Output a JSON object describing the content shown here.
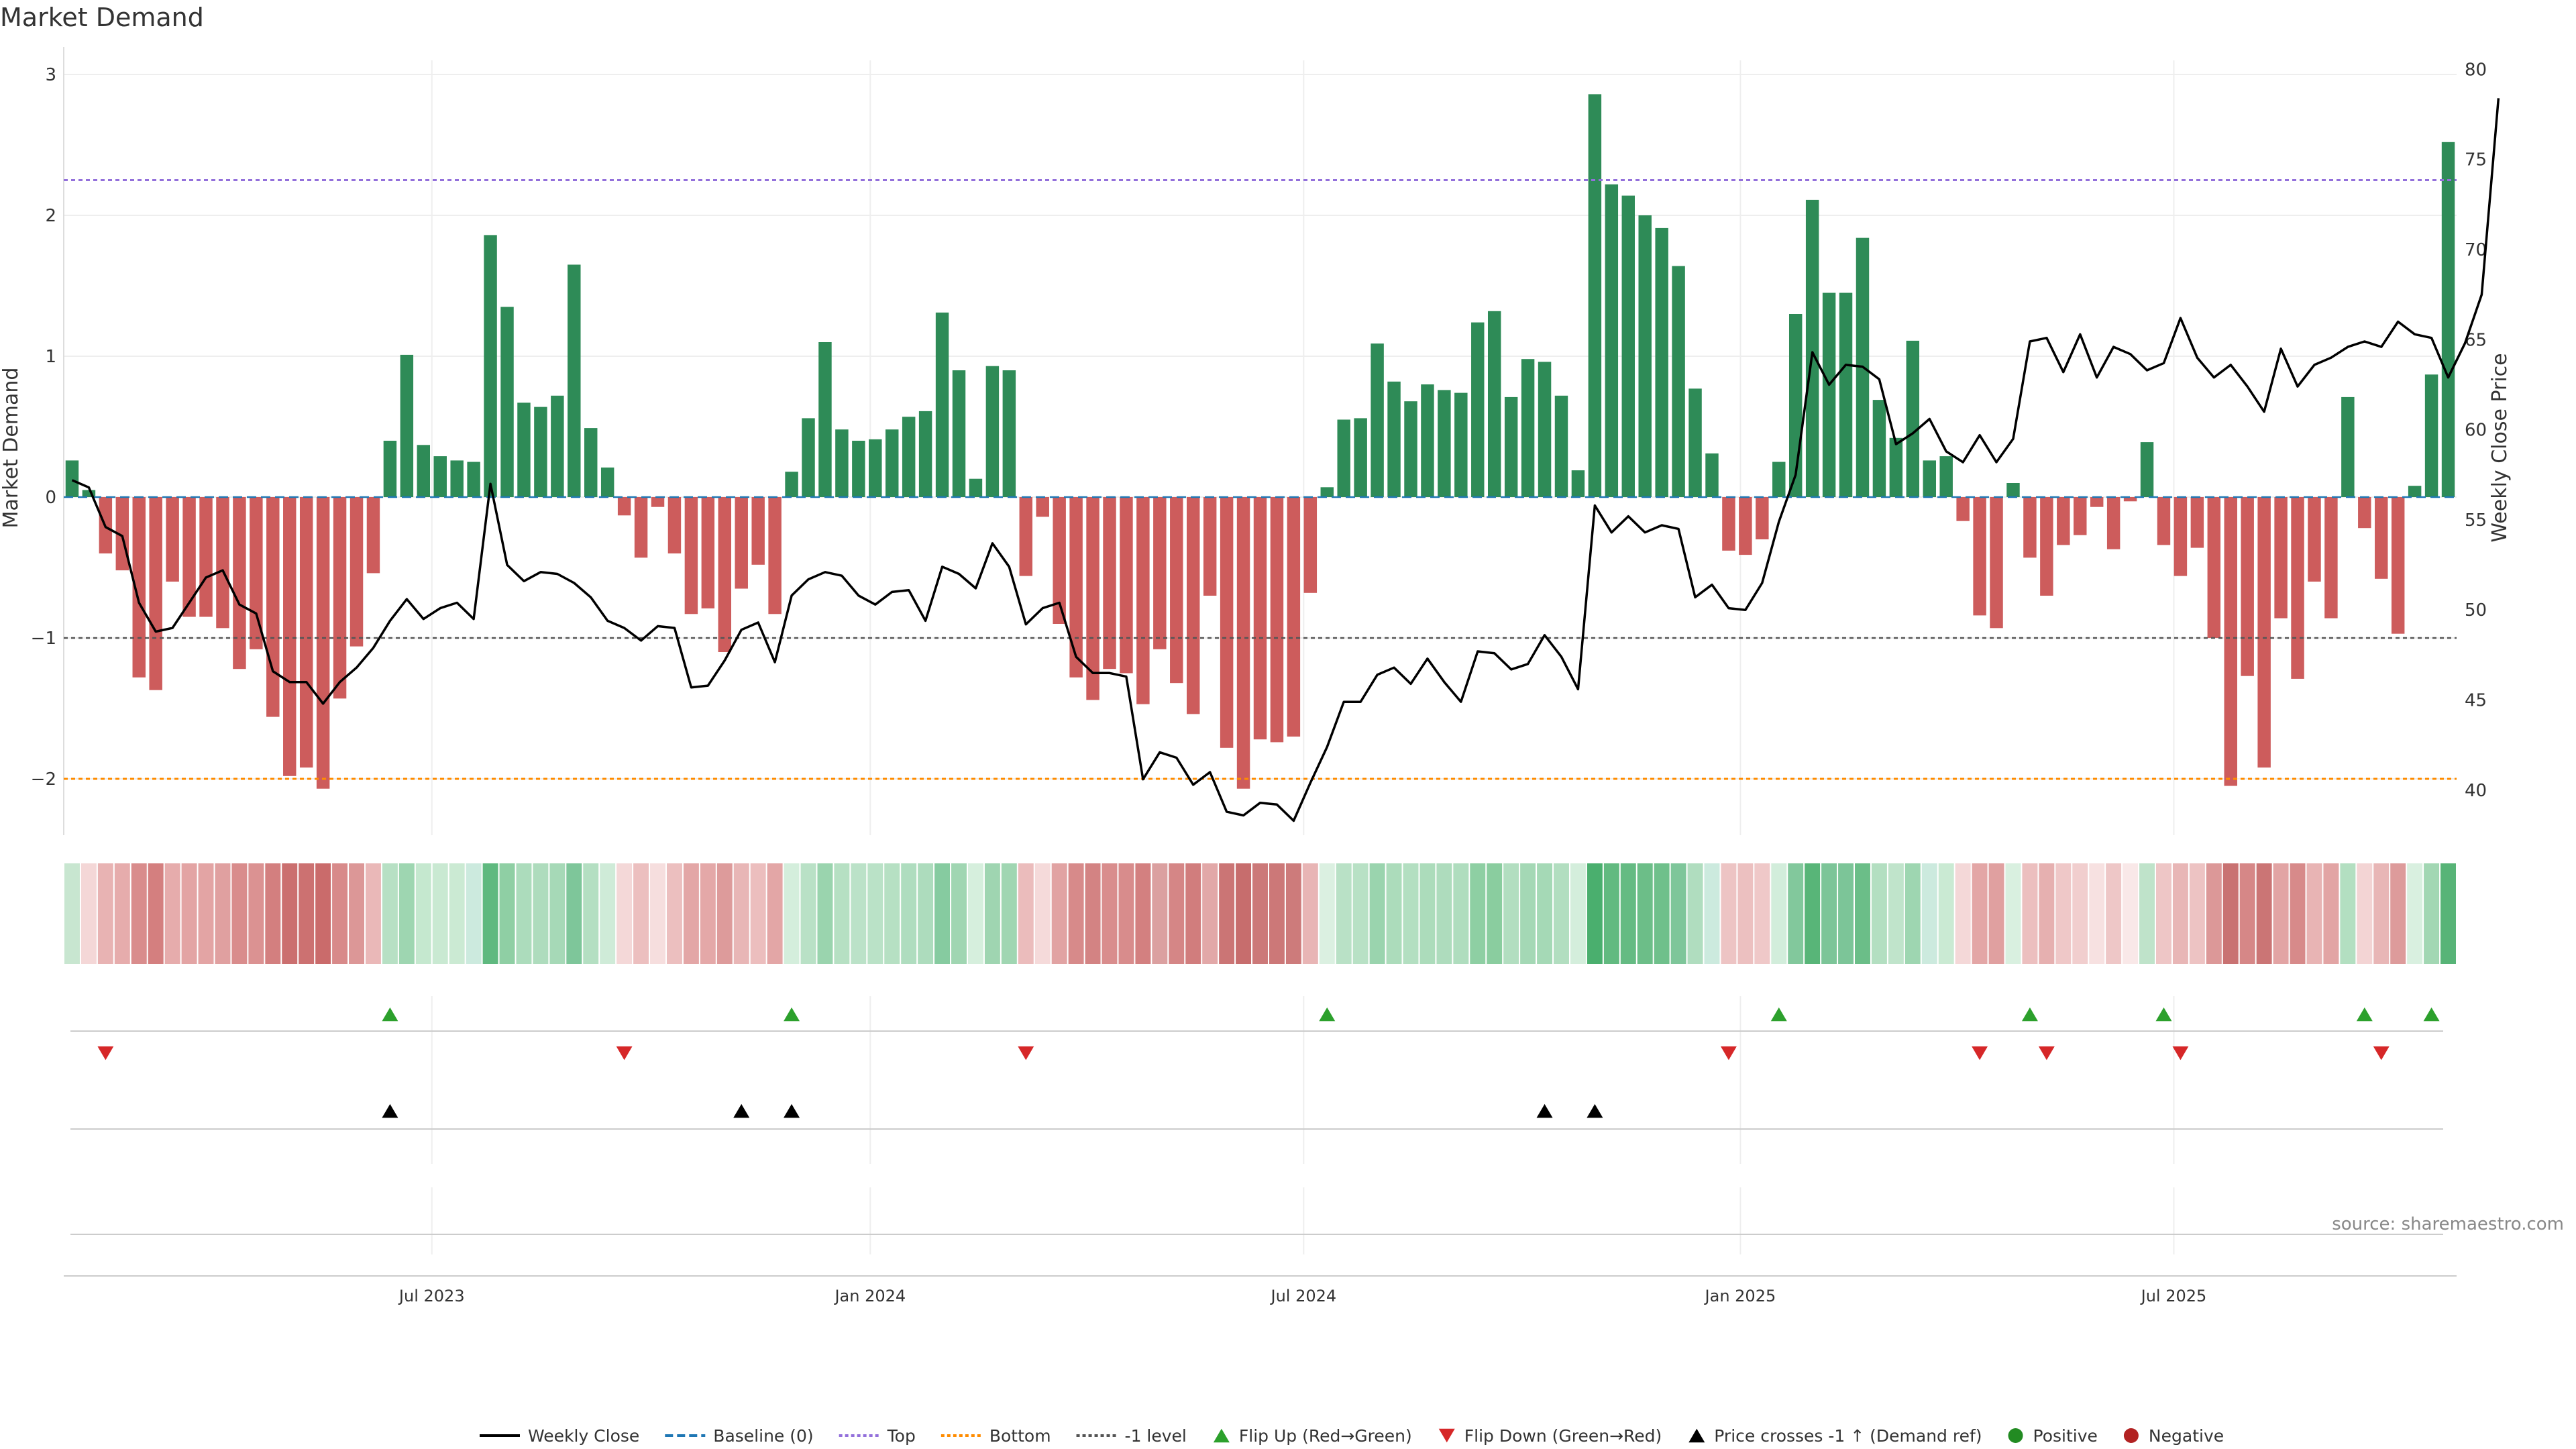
{
  "title": "Market Demand",
  "source": "source: sharemaestro.com",
  "colors": {
    "positive": "#2e8b57",
    "negative": "#cd5c5c",
    "price_line": "#000000",
    "top_line": "#9370db",
    "bottom_line": "#ff8c00",
    "minus1_line": "#555555",
    "baseline": "#1f77b4",
    "flip_up": "#2ca02c",
    "flip_down": "#d62728",
    "cross": "#000000",
    "grid": "#eeeeee"
  },
  "chart_data": {
    "type": "bar",
    "title": "Market Demand",
    "ylabel": "Market Demand",
    "y2label": "Weekly Close Price",
    "ylim": [
      -2.4,
      3.1
    ],
    "y2lim": [
      37.5,
      80.5
    ],
    "yticks": [
      3,
      2,
      1,
      0,
      -1,
      -2
    ],
    "ytick_labels": [
      "3",
      "2",
      "1",
      "0",
      "−1",
      "−2"
    ],
    "y2ticks": [
      80,
      75,
      70,
      65,
      60,
      55,
      50,
      45,
      40
    ],
    "x_months": [
      {
        "label": "Jul 2023",
        "week": 21.5
      },
      {
        "label": "Jan 2024",
        "week": 47.7
      },
      {
        "label": "Jul 2024",
        "week": 73.6
      },
      {
        "label": "Jan 2025",
        "week": 99.7
      },
      {
        "label": "Jul 2025",
        "week": 125.6
      }
    ],
    "levels": {
      "top": 2.25,
      "bottom": -2.0,
      "minus1": -1.0,
      "baseline": 0
    },
    "demand": [
      0.26,
      0.05,
      -0.4,
      -0.52,
      -1.28,
      -1.37,
      -0.6,
      -0.85,
      -0.85,
      -0.93,
      -1.22,
      -1.08,
      -1.56,
      -1.98,
      -1.92,
      -2.07,
      -1.43,
      -1.06,
      -0.54,
      0.4,
      1.01,
      0.37,
      0.29,
      0.26,
      0.25,
      1.86,
      1.35,
      0.67,
      0.64,
      0.72,
      1.65,
      0.49,
      0.21,
      -0.13,
      -0.43,
      -0.07,
      -0.4,
      -0.83,
      -0.79,
      -1.1,
      -0.65,
      -0.48,
      -0.83,
      0.18,
      0.56,
      1.1,
      0.48,
      0.4,
      0.41,
      0.48,
      0.57,
      0.61,
      1.31,
      0.9,
      0.13,
      0.93,
      0.9,
      -0.56,
      -0.14,
      -0.9,
      -1.28,
      -1.44,
      -1.22,
      -1.25,
      -1.47,
      -1.08,
      -1.32,
      -1.54,
      -0.7,
      -1.78,
      -2.07,
      -1.72,
      -1.74,
      -1.7,
      -0.68,
      0.07,
      0.55,
      0.56,
      1.09,
      0.82,
      0.68,
      0.8,
      0.76,
      0.74,
      1.24,
      1.32,
      0.71,
      0.98,
      0.96,
      0.72,
      0.19,
      2.86,
      2.22,
      2.14,
      2.0,
      1.91,
      1.64,
      0.77,
      0.31,
      -0.38,
      -0.41,
      -0.3,
      0.25,
      1.3,
      2.11,
      1.45,
      1.45,
      1.84,
      0.69,
      0.42,
      1.11,
      0.26,
      0.29,
      -0.17,
      -0.84,
      -0.93,
      0.1,
      -0.43,
      -0.7,
      -0.34,
      -0.27,
      -0.07,
      -0.37,
      -0.03,
      0.39,
      -0.34,
      -0.56,
      -0.36,
      -1.0,
      -2.05,
      -1.27,
      -1.92,
      -0.86,
      -1.29,
      -0.6,
      -0.86,
      0.71,
      -0.22,
      -0.58,
      -0.97,
      0.08,
      0.87,
      2.52
    ],
    "price": [
      57.2,
      56.8,
      54.6,
      54.1,
      50.4,
      48.8,
      49.0,
      50.4,
      51.8,
      52.2,
      50.3,
      49.8,
      46.6,
      46.0,
      46.0,
      44.8,
      46.0,
      46.8,
      47.9,
      49.4,
      50.6,
      49.5,
      50.1,
      50.4,
      49.5,
      57.0,
      52.5,
      51.6,
      52.1,
      52.0,
      51.5,
      50.7,
      49.4,
      49.0,
      48.3,
      49.1,
      49.0,
      45.7,
      45.8,
      47.2,
      48.9,
      49.3,
      47.1,
      50.8,
      51.7,
      52.1,
      51.9,
      50.8,
      50.3,
      51.0,
      51.1,
      49.4,
      52.4,
      52.0,
      51.2,
      53.7,
      52.4,
      49.2,
      50.1,
      50.4,
      47.4,
      46.5,
      46.5,
      46.3,
      40.6,
      42.1,
      41.8,
      40.3,
      41.0,
      38.8,
      38.6,
      39.3,
      39.2,
      38.3,
      40.4,
      42.4,
      44.9,
      44.9,
      46.4,
      46.8,
      45.9,
      47.3,
      46.0,
      44.9,
      47.7,
      47.6,
      46.7,
      47.0,
      48.6,
      47.4,
      45.6,
      55.8,
      54.3,
      55.2,
      54.3,
      54.7,
      54.5,
      50.7,
      51.4,
      50.1,
      50.0,
      51.5,
      54.9,
      57.5,
      64.3,
      62.5,
      63.6,
      63.5,
      62.8,
      59.2,
      59.8,
      60.6,
      58.8,
      58.2,
      59.7,
      58.2,
      59.5,
      64.9,
      65.1,
      63.2,
      65.3,
      62.9,
      64.6,
      64.2,
      63.3,
      63.7,
      66.2,
      64.0,
      62.9,
      63.6,
      62.4,
      61.0,
      64.5,
      62.4,
      63.6,
      64.0,
      64.6,
      64.9,
      64.6,
      66.0,
      65.3,
      65.1,
      62.9,
      64.8,
      67.5,
      78.4
    ],
    "heat_colors": [
      "#c8e6d0",
      "#f4d7d7",
      "#e8b3b3",
      "#e6acac",
      "#d98c8c",
      "#d47f7f",
      "#e6acac",
      "#e3a4a4",
      "#e3a4a4",
      "#e0a0a0",
      "#d98c8c",
      "#db9292",
      "#d37f7f",
      "#cb6f6f",
      "#cc7171",
      "#ca6b6b",
      "#d88a8a",
      "#dc9797",
      "#eab8b8",
      "#b7e0c4",
      "#9ed6b1",
      "#c5e8cf",
      "#c9e9d2",
      "#cbead3",
      "#cceade",
      "#5fb97f",
      "#8fcfa4",
      "#acdcbc",
      "#aedcbd",
      "#a6d9b7",
      "#7ec69a",
      "#b4dfc2",
      "#cfebd8",
      "#f4d8d8",
      "#ecbfbf",
      "#f6dede",
      "#ecbfbf",
      "#e3a6a6",
      "#e4a8a8",
      "#dd9b9b",
      "#e8b6b6",
      "#ecbebe",
      "#e3a6a6",
      "#d4eedc",
      "#b9e1c6",
      "#9ad4ae",
      "#b6e0c3",
      "#bbe2c8",
      "#bae2c7",
      "#b6e0c3",
      "#afddbf",
      "#addcbd",
      "#86cba0",
      "#a0d6b2",
      "#d6efdd",
      "#9fd5b1",
      "#a0d6b2",
      "#ebbcbc",
      "#f5dada",
      "#e1a3a3",
      "#d78a8a",
      "#d38383",
      "#d98d8d",
      "#d88c8c",
      "#d38080",
      "#dba0a0",
      "#d58686",
      "#d17d7d",
      "#e2a8a8",
      "#cb7575",
      "#c76d6d",
      "#cc7979",
      "#cc7878",
      "#cd7b7b",
      "#e8b5b5",
      "#dbf0e1",
      "#b9e1c6",
      "#b8e1c5",
      "#9ad4ae",
      "#acdcbb",
      "#b3dfc1",
      "#acdcbb",
      "#aedcbd",
      "#afddbe",
      "#8ecfa3",
      "#8acd9f",
      "#b2dec0",
      "#a4d8b5",
      "#a5d9b6",
      "#b2dec0",
      "#d4eedc",
      "#4aaf6e",
      "#62ba80",
      "#65bb83",
      "#6cbe88",
      "#6fc08b",
      "#7ec69a",
      "#b0ddbf",
      "#cceade",
      "#edc4c4",
      "#ecc0c0",
      "#efc8c8",
      "#d2eddb",
      "#82c89c",
      "#58b578",
      "#7cc598",
      "#7cc598",
      "#6bbe88",
      "#b3dfc1",
      "#c0e4cb",
      "#9ed6b1",
      "#cceade",
      "#caead3",
      "#f4d8d8",
      "#e3a6a6",
      "#e0a0a0",
      "#d9f0e0",
      "#ecbfbf",
      "#e6b0b0",
      "#efc8c8",
      "#f1cece",
      "#f7e1e1",
      "#eec7c7",
      "#f9e8e8",
      "#bfe3ca",
      "#eec6c6",
      "#e8b6b6",
      "#edc3c3",
      "#dc9898",
      "#c97272",
      "#d68787",
      "#cb7575",
      "#e2a4a4",
      "#d78a8a",
      "#e8b4b4",
      "#e2a4a4",
      "#b3dfc1",
      "#f3d4d4",
      "#e8b6b6",
      "#dd9b9b",
      "#d9f0e0",
      "#a2d7b3",
      "#57b477"
    ],
    "flip_up_weeks": [
      19,
      43,
      75,
      102,
      117,
      125,
      137,
      141
    ],
    "flip_down_weeks": [
      2,
      33,
      57,
      99,
      114,
      118,
      126,
      138
    ],
    "cross_weeks": [
      19,
      40,
      43,
      88,
      91
    ]
  },
  "legend": [
    {
      "kind": "line",
      "label": "Weekly Close",
      "color": "#000000",
      "dash": ""
    },
    {
      "kind": "line",
      "label": "Baseline (0)",
      "color": "#1f77b4",
      "dash": "12,6"
    },
    {
      "kind": "line",
      "label": "Top",
      "color": "#9370db",
      "dash": "5,4"
    },
    {
      "kind": "line",
      "label": "Bottom",
      "color": "#ff8c00",
      "dash": "5,4"
    },
    {
      "kind": "line",
      "label": "-1 level",
      "color": "#555555",
      "dash": "5,4"
    },
    {
      "kind": "tri-up",
      "label": "Flip Up (Red→Green)",
      "color": "#2ca02c"
    },
    {
      "kind": "tri-down",
      "label": "Flip Down (Green→Red)",
      "color": "#d62728"
    },
    {
      "kind": "tri-up",
      "label": "Price crosses -1 ↑ (Demand ref)",
      "color": "#000000"
    },
    {
      "kind": "dot",
      "label": "Positive",
      "color": "#228b22"
    },
    {
      "kind": "dot",
      "label": "Negative",
      "color": "#b22222"
    }
  ]
}
